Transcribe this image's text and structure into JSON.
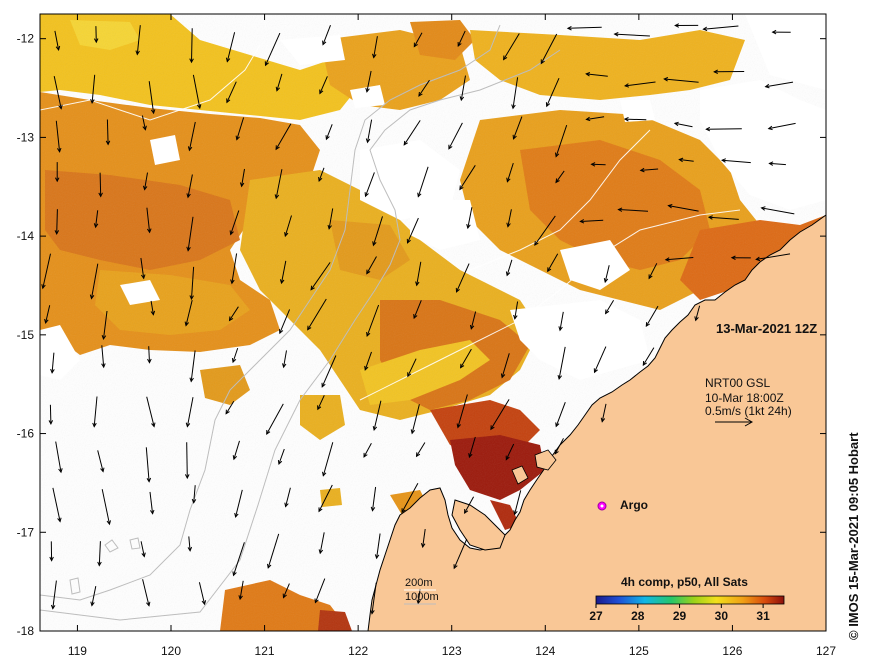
{
  "map": {
    "timestamp": "13-Mar-2021 12Z",
    "credit": "© IMOS 15-Mar-2021 09:05 Hobart",
    "platform_label": "Argo",
    "current_legend": {
      "line1": "NRT00 GSL",
      "line2": "10-Mar 18:00Z",
      "line3": "0.5m/s (1kt 24h)"
    },
    "isobath_legend": {
      "line1": "200m",
      "line2": "1000m"
    },
    "colorbar": {
      "title": "4h comp, p50, All Sats",
      "ticks": [
        "27",
        "28",
        "29",
        "30",
        "31"
      ],
      "min": 27,
      "max": 31.5
    },
    "x_axis": {
      "ticks": [
        "119",
        "120",
        "121",
        "122",
        "123",
        "124",
        "125",
        "126",
        "127"
      ],
      "min": 118.6,
      "max": 127.0
    },
    "y_axis": {
      "ticks": [
        "-12",
        "-13",
        "-14",
        "-15",
        "-16",
        "-17",
        "-18"
      ],
      "min": -18.0,
      "max": -11.75
    },
    "colors": {
      "land": "#f9c796",
      "sea": "#ffffff",
      "coast": "#000000",
      "isobath": "#bdbdbd",
      "argo": "#ff00ff",
      "sst_warm": "#e07a10",
      "sst_mid": "#f3b21a",
      "sst_hot": "#8b0f0b"
    }
  }
}
